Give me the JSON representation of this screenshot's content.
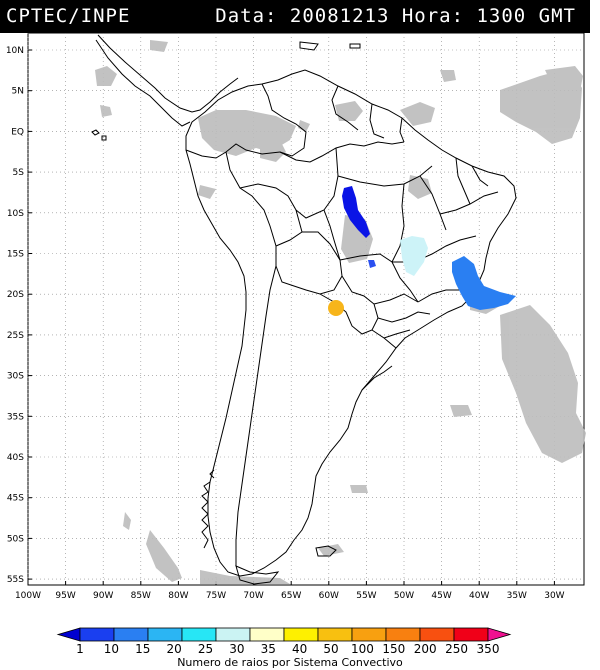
{
  "header": {
    "left": "CPTEC/INPE",
    "right": "Data: 20081213 Hora: 1300 GMT"
  },
  "map": {
    "lat_labels": [
      "10N",
      "5N",
      "EQ",
      "5S",
      "10S",
      "15S",
      "20S",
      "25S",
      "30S",
      "35S",
      "40S",
      "45S",
      "50S",
      "55S"
    ],
    "lon_labels": [
      "100W",
      "95W",
      "90W",
      "85W",
      "80W",
      "75W",
      "70W",
      "65W",
      "60W",
      "55W",
      "50W",
      "45W",
      "40W",
      "35W",
      "30W"
    ],
    "colors": {
      "border": "#000000",
      "cloud": "#bcbcbc",
      "grid": "#888888"
    },
    "systems": [
      {
        "name": "amazon-south-system",
        "color": "#0a14e6"
      },
      {
        "name": "mato-grosso-small-system",
        "color": "#2a50f0"
      },
      {
        "name": "goias-system",
        "color": "#cdf3f8"
      },
      {
        "name": "southeast-coast-system",
        "color": "#2a7ff2"
      },
      {
        "name": "paraguay-system",
        "color": "#f7b51b"
      }
    ]
  },
  "legend": {
    "ticks": [
      "1",
      "10",
      "15",
      "20",
      "25",
      "30",
      "35",
      "40",
      "50",
      "100",
      "150",
      "200",
      "250",
      "350"
    ],
    "colors": [
      "#0000d0",
      "#1a3ff0",
      "#2a7ff2",
      "#2bb5f3",
      "#27e6f5",
      "#cbf3f3",
      "#ffffc8",
      "#fef000",
      "#f8c010",
      "#f8a010",
      "#f88010",
      "#f85010",
      "#f00018",
      "#f01090"
    ],
    "title": "Numero de raios por Sistema Convectivo"
  }
}
